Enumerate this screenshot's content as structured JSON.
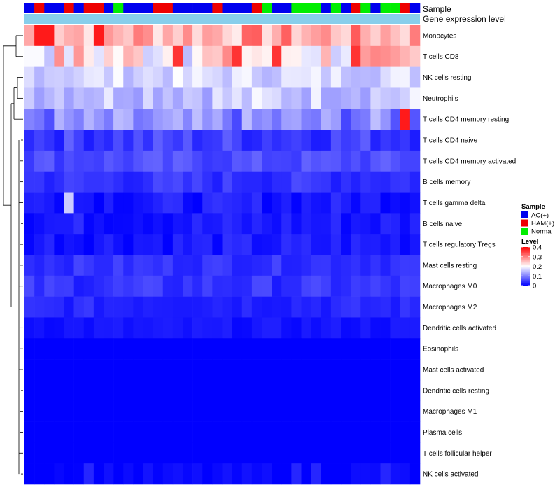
{
  "chart_data": {
    "type": "heatmap",
    "title": "",
    "annotation_labels": [
      "Sample",
      "Gene expression level"
    ],
    "rows": [
      "Monocytes",
      "T cells CD8",
      "NK cells resting",
      "Neutrophils",
      "T cells CD4 memory resting",
      "T cells CD4 naive",
      "T cells CD4 memory activated",
      "B cells memory",
      "T cells gamma delta",
      "B cells naive",
      "T cells regulatory  Tregs",
      "Mast cells resting",
      "Macrophages M0",
      "Macrophages M2",
      "Dendritic cells activated",
      "Eosinophils",
      "Mast cells activated",
      "Dendritic cells resting",
      "Macrophages M1",
      "Plasma cells",
      "T cells follicular helper",
      "NK cells activated"
    ],
    "sample_groups": [
      "AC(+)",
      "HAM(+)",
      "AC(+)",
      "AC(+)",
      "HAM(+)",
      "AC(+)",
      "HAM(+)",
      "HAM(+)",
      "AC(+)",
      "Normal",
      "AC(+)",
      "AC(+)",
      "AC(+)",
      "HAM(+)",
      "HAM(+)",
      "AC(+)",
      "AC(+)",
      "AC(+)",
      "AC(+)",
      "HAM(+)",
      "AC(+)",
      "AC(+)",
      "AC(+)",
      "HAM(+)",
      "Normal",
      "AC(+)",
      "AC(+)",
      "Normal",
      "Normal",
      "Normal",
      "AC(+)",
      "Normal",
      "AC(+)",
      "HAM(+)",
      "Normal",
      "AC(+)",
      "Normal",
      "Normal",
      "HAM(+)",
      "AC(+)"
    ],
    "legend_sample": {
      "title": "Sample",
      "entries": [
        {
          "label": "AC(+)",
          "color": "#0000ee"
        },
        {
          "label": "HAM(+)",
          "color": "#ee0000"
        },
        {
          "label": "Normal",
          "color": "#00ee00"
        }
      ]
    },
    "legend_level": {
      "title": "Level",
      "ticks": [
        "0.4",
        "0.3",
        "0.2",
        "0.1",
        "0"
      ],
      "tick_values": [
        0.4,
        0.3,
        0.2,
        0.1,
        0
      ],
      "range": [
        0,
        0.4
      ]
    },
    "colors": {
      "low": "#0000ff",
      "mid": "#ffffff",
      "high": "#ff0000",
      "expression_bar": "#87ceeb",
      "border": "#808080"
    },
    "row_means": [
      0.27,
      0.22,
      0.17,
      0.16,
      0.1,
      0.05,
      0.06,
      0.04,
      0.02,
      0.02,
      0.02,
      0.04,
      0.04,
      0.03,
      0.015,
      0,
      0,
      0,
      0,
      0,
      0,
      0.005
    ],
    "row_spread": [
      0.06,
      0.08,
      0.03,
      0.04,
      0.05,
      0.03,
      0.02,
      0.02,
      0.02,
      0.02,
      0.02,
      0.015,
      0.02,
      0.015,
      0.01,
      0,
      0,
      0,
      0,
      0,
      0,
      0.01
    ]
  }
}
